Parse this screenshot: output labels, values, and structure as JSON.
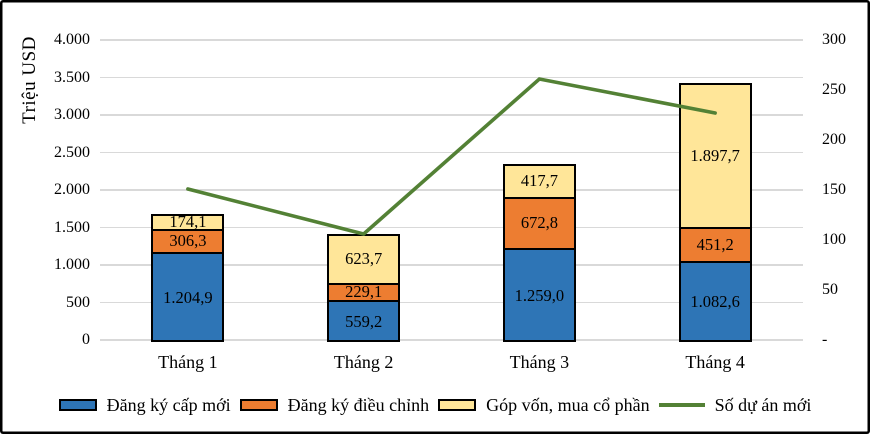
{
  "chart_data": {
    "type": "bar",
    "subtype": "stacked-bars-with-line-overlay",
    "categories": [
      "Tháng 1",
      "Tháng 2",
      "Tháng 3",
      "Tháng 4"
    ],
    "bar_series": [
      {
        "name": "Đăng ký cấp mới",
        "color": "#2E75B6",
        "values": [
          1204.9,
          559.2,
          1259.0,
          1082.6
        ],
        "labels": [
          "1.204,9",
          "559,2",
          "1.259,0",
          "1.082,6"
        ]
      },
      {
        "name": "Đăng ký điều chỉnh",
        "color": "#ED7D31",
        "values": [
          306.3,
          229.1,
          672.8,
          451.2
        ],
        "labels": [
          "306,3",
          "229,1",
          "672,8",
          "451,2"
        ]
      },
      {
        "name": "Góp vốn, mua cổ phần",
        "color": "#FFE699",
        "values": [
          174.1,
          623.7,
          417.7,
          1897.7
        ],
        "labels": [
          "174,1",
          "623,7",
          "417,7",
          "1.897,7"
        ]
      }
    ],
    "line_series": {
      "name": "Số dự án mới",
      "color": "#538135",
      "axis": "right",
      "values": [
        151,
        106,
        261,
        227
      ]
    },
    "left_axis": {
      "title": "Triệu USD",
      "min": 0,
      "max": 4000,
      "tick_step": 500,
      "tick_labels": [
        "0",
        "500",
        "1.000",
        "1.500",
        "2.000",
        "2.500",
        "3.000",
        "3.500",
        "4.000"
      ]
    },
    "right_axis": {
      "min": 0,
      "max": 300,
      "tick_step": 50,
      "tick_labels": [
        "-",
        "50",
        "100",
        "150",
        "200",
        "250",
        "300"
      ]
    },
    "gridlines": true,
    "gridline_color": "#d9d9d9",
    "legend_position": "bottom"
  }
}
